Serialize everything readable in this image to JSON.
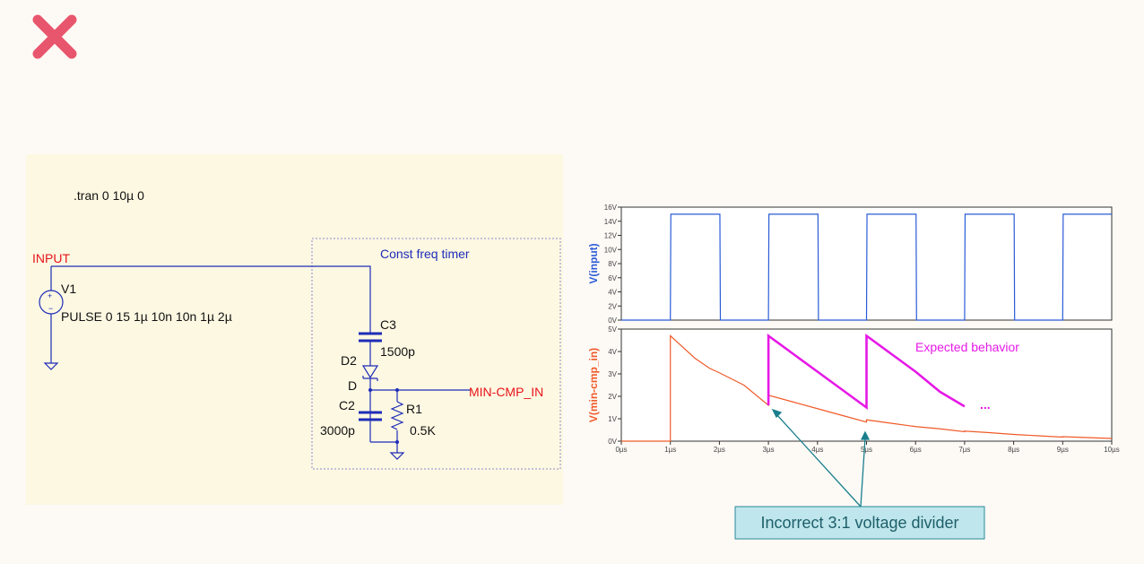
{
  "schematic": {
    "directive": ".tran 0 10µ 0",
    "net_input": "INPUT",
    "source_name": "V1",
    "source_value": "PULSE 0 15 1µ 10n 10n 1µ 2µ",
    "block_title": "Const freq timer",
    "c3_name": "C3",
    "c3_value": "1500p",
    "d2_name": "D2",
    "d2_model": "D",
    "c2_name": "C2",
    "c2_value": "3000p",
    "r1_name": "R1",
    "r1_value": "0.5K",
    "net_output": "MIN-CMP_IN"
  },
  "chart_data": [
    {
      "type": "line",
      "ylabel": "V(input)",
      "xlim": [
        0,
        10
      ],
      "ylim": [
        0,
        16
      ],
      "yticks": [
        {
          "value": 0,
          "label": "0V"
        },
        {
          "value": 2,
          "label": "2V"
        },
        {
          "value": 4,
          "label": "4V"
        },
        {
          "value": 6,
          "label": "6V"
        },
        {
          "value": 8,
          "label": "8V"
        },
        {
          "value": 10,
          "label": "10V"
        },
        {
          "value": 12,
          "label": "12V"
        },
        {
          "value": 14,
          "label": "14V"
        },
        {
          "value": 16,
          "label": "16V"
        }
      ],
      "series": [
        {
          "color": "#2a5bd7",
          "x": [
            0,
            1,
            1.01,
            2.01,
            2.02,
            3,
            3.01,
            4.01,
            4.02,
            5,
            5.01,
            6.01,
            6.02,
            7,
            7.01,
            8.01,
            8.02,
            9,
            9.01,
            10
          ],
          "values": [
            0,
            0,
            15,
            15,
            0,
            0,
            15,
            15,
            0,
            0,
            15,
            15,
            0,
            0,
            15,
            15,
            0,
            0,
            15,
            15
          ]
        }
      ]
    },
    {
      "type": "line",
      "ylabel": "V(min-cmp_in)",
      "xlim": [
        0,
        10
      ],
      "ylim": [
        0,
        5
      ],
      "yticks": [
        {
          "value": 0,
          "label": "0V"
        },
        {
          "value": 1,
          "label": "1V"
        },
        {
          "value": 2,
          "label": "2V"
        },
        {
          "value": 3,
          "label": "3V"
        },
        {
          "value": 4,
          "label": "4V"
        },
        {
          "value": 5,
          "label": "5V"
        }
      ],
      "xticks": [
        {
          "value": 0,
          "label": "0µs"
        },
        {
          "value": 1,
          "label": "1µs"
        },
        {
          "value": 2,
          "label": "2µs"
        },
        {
          "value": 3,
          "label": "3µs"
        },
        {
          "value": 4,
          "label": "4µs"
        },
        {
          "value": 5,
          "label": "5µs"
        },
        {
          "value": 6,
          "label": "6µs"
        },
        {
          "value": 7,
          "label": "7µs"
        },
        {
          "value": 8,
          "label": "8µs"
        },
        {
          "value": 9,
          "label": "9µs"
        },
        {
          "value": 10,
          "label": "10µs"
        }
      ],
      "series": [
        {
          "color": "#f05a28",
          "x": [
            0,
            1,
            1,
            1.5,
            1.8,
            2,
            2.5,
            3,
            3,
            3.5,
            4,
            4.5,
            5,
            5,
            5.5,
            6,
            6.5,
            7,
            7,
            7.5,
            8,
            8.5,
            9,
            9,
            9.5,
            10
          ],
          "values": [
            0,
            0,
            4.7,
            3.7,
            3.25,
            3.05,
            2.5,
            1.6,
            2.05,
            1.75,
            1.45,
            1.15,
            0.85,
            0.95,
            0.8,
            0.65,
            0.55,
            0.42,
            0.45,
            0.38,
            0.3,
            0.24,
            0.18,
            0.2,
            0.16,
            0.12
          ]
        },
        {
          "color": "#e619e6",
          "x": [
            3,
            3,
            3.5,
            4,
            4.5,
            5,
            5,
            5.5,
            6,
            6.5,
            7
          ],
          "values": [
            1.6,
            4.7,
            3.9,
            3.1,
            2.3,
            1.5,
            4.7,
            3.9,
            3.1,
            2.2,
            1.55
          ]
        }
      ],
      "annotations": [
        "Expected behavior",
        "..."
      ]
    }
  ],
  "callout": "Incorrect 3:1 voltage divider"
}
